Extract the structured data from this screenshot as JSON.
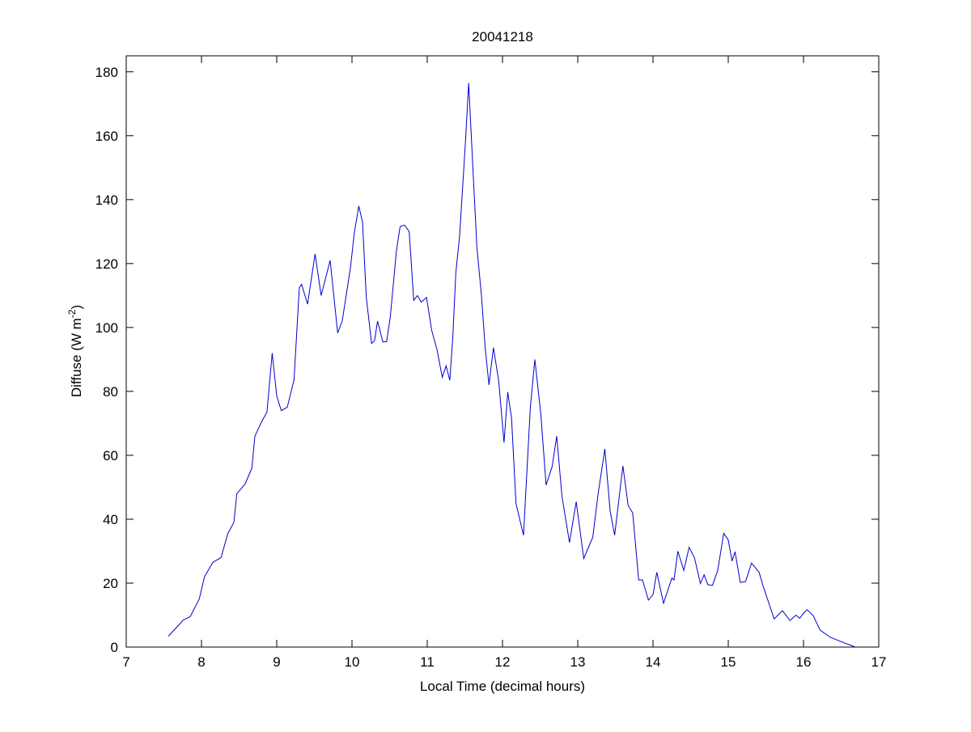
{
  "chart_data": {
    "type": "line",
    "title": "20041218",
    "xlabel": "Local Time (decimal hours)",
    "ylabel": "Diffuse (W m",
    "ylabel_superscript": "-2",
    "ylabel_suffix": ")",
    "xlim": [
      7,
      17
    ],
    "ylim": [
      0,
      185
    ],
    "xticks": [
      7,
      8,
      9,
      10,
      11,
      12,
      13,
      14,
      15,
      16,
      17
    ],
    "yticks": [
      0,
      20,
      40,
      60,
      80,
      100,
      120,
      140,
      160,
      180
    ],
    "grid": false,
    "line_color": "#0000cc",
    "series": [
      {
        "x": [
          7.56,
          7.76,
          7.85,
          7.97,
          8.04,
          8.15,
          8.26,
          8.35,
          8.43,
          8.47,
          8.58,
          8.67,
          8.71,
          8.81,
          8.87,
          8.94,
          9.0,
          9.06,
          9.14,
          9.23,
          9.3,
          9.33,
          9.41,
          9.51,
          9.59,
          9.71,
          9.81,
          9.87,
          9.98,
          10.03,
          10.09,
          10.14,
          10.19,
          10.26,
          10.3,
          10.34,
          10.41,
          10.46,
          10.51,
          10.59,
          10.64,
          10.7,
          10.76,
          10.82,
          10.87,
          10.92,
          10.99,
          11.06,
          11.13,
          11.2,
          11.25,
          11.3,
          11.34,
          11.38,
          11.43,
          11.51,
          11.55,
          11.61,
          11.66,
          11.72,
          11.77,
          11.82,
          11.88,
          11.95,
          12.02,
          12.07,
          12.12,
          12.18,
          12.28,
          12.37,
          12.43,
          12.51,
          12.58,
          12.66,
          12.72,
          12.79,
          12.89,
          12.98,
          13.08,
          13.2,
          13.27,
          13.36,
          13.43,
          13.49,
          13.6,
          13.67,
          13.73,
          13.81,
          13.86,
          13.94,
          14.0,
          14.05,
          14.14,
          14.25,
          14.28,
          14.33,
          14.41,
          14.48,
          14.55,
          14.63,
          14.68,
          14.73,
          14.79,
          14.86,
          14.94,
          15.0,
          15.05,
          15.09,
          15.16,
          15.23,
          15.31,
          15.41,
          15.46,
          15.61,
          15.72,
          15.82,
          15.9,
          15.95,
          16.0,
          16.05,
          16.13,
          16.22,
          16.36,
          16.51,
          16.68
        ],
        "y": [
          3.4,
          8.5,
          9.5,
          15,
          22,
          26.5,
          28,
          35.5,
          39,
          48,
          51,
          56,
          66,
          71,
          73.5,
          92,
          78.6,
          74,
          75,
          83.7,
          112.4,
          113.5,
          107.3,
          123,
          110,
          121,
          98.3,
          102,
          118.7,
          129.5,
          138,
          133,
          109.4,
          95,
          95.9,
          102,
          95.5,
          95.5,
          103.4,
          124,
          131.6,
          132,
          130,
          108.5,
          110,
          107.9,
          109.4,
          99,
          93,
          84.4,
          88,
          83.5,
          97,
          117,
          128.6,
          158.8,
          176.5,
          148.4,
          125,
          110,
          93.7,
          82,
          93.7,
          83.3,
          64,
          79.8,
          71.6,
          44.9,
          35,
          75,
          90,
          72.8,
          50.7,
          56.5,
          66,
          47.2,
          32.7,
          45.5,
          27.7,
          34.4,
          47.8,
          62,
          42.6,
          35,
          56.7,
          44.3,
          42,
          21,
          21,
          14.7,
          16.4,
          23.4,
          13.7,
          21.6,
          21,
          30,
          24,
          31.2,
          28,
          19.9,
          22.6,
          19.5,
          19.3,
          24,
          35.6,
          33.5,
          26.9,
          29.8,
          20.2,
          20.5,
          26.3,
          23.4,
          19.3,
          8.8,
          11.4,
          8.3,
          10,
          9,
          10.6,
          11.7,
          9.8,
          5.3,
          3,
          1.6,
          0.1
        ]
      }
    ]
  }
}
